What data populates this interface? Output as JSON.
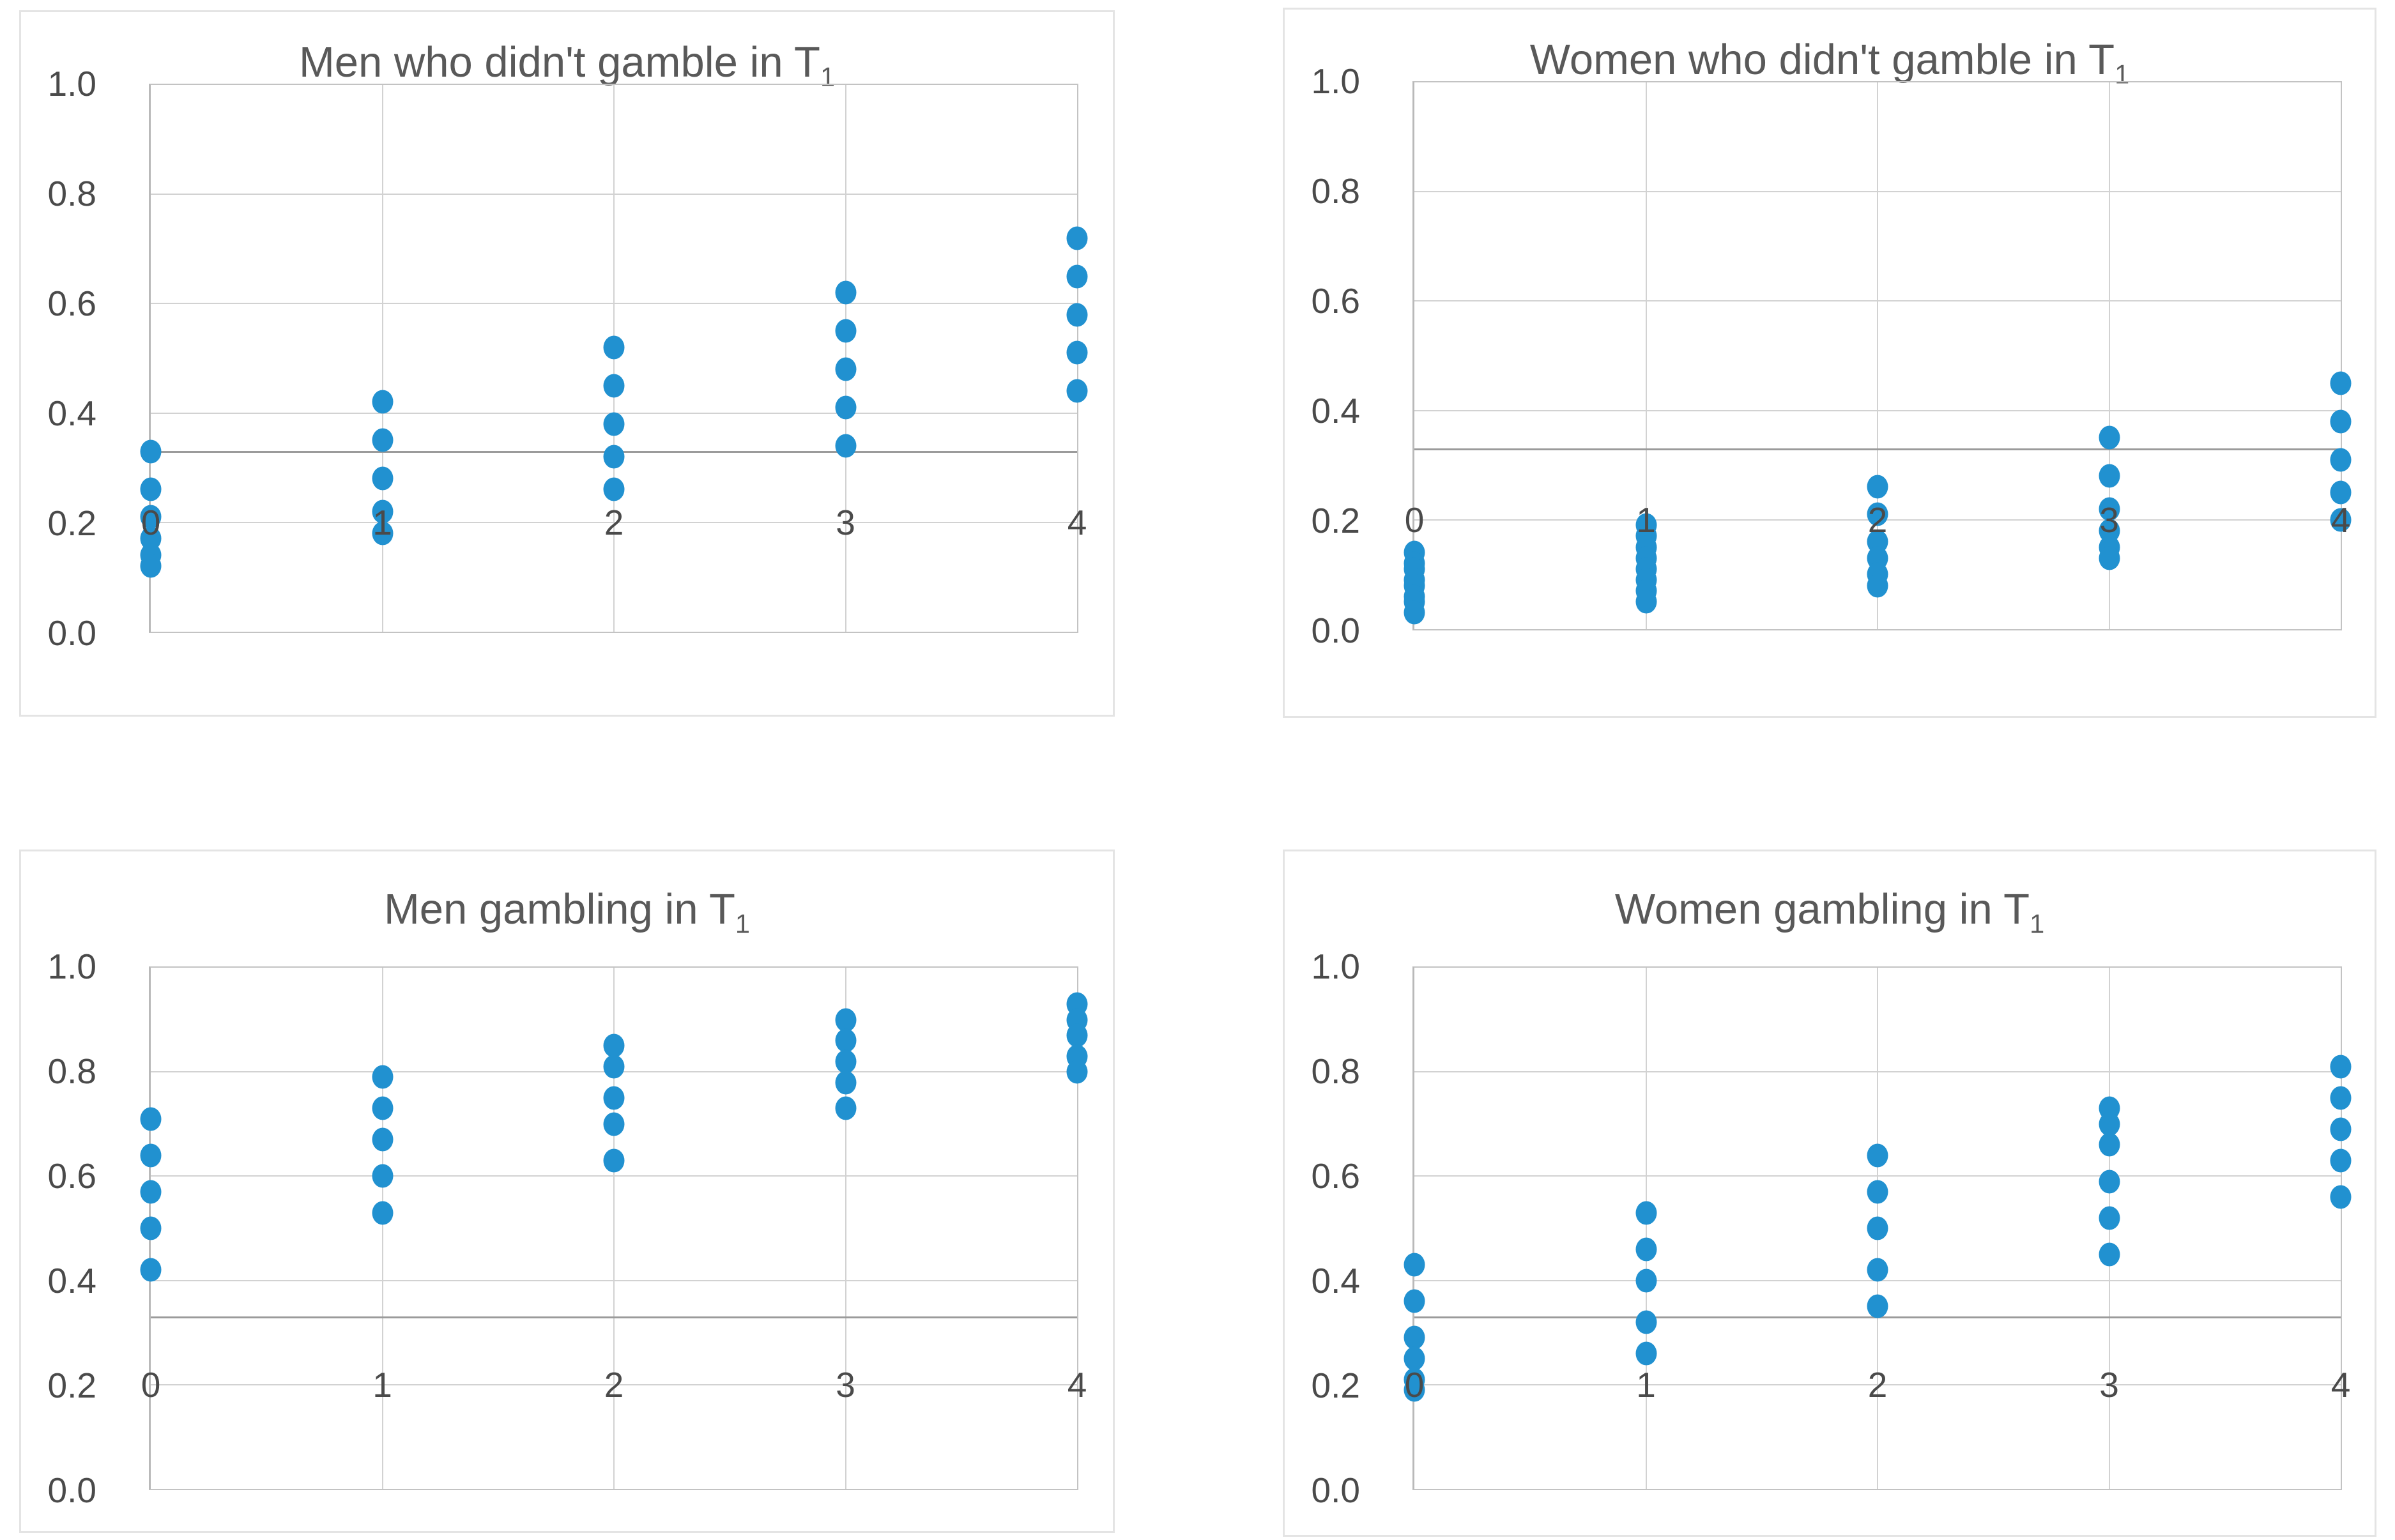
{
  "colors": {
    "marker": "#2191d0",
    "title_text": "#595959",
    "tick_text": "#4a4a4a",
    "gridline": "#d2d2d2",
    "reference_line": "#9b9b9b",
    "plot_border": "#c3c3c3",
    "card_border": "#e4e4e4"
  },
  "chart_data": [
    {
      "type": "scatter",
      "position": "top-left",
      "title_main": "Men who didn't gamble in T",
      "title_sub": "1",
      "xlabel": "",
      "ylabel": "",
      "xlim": [
        0,
        4
      ],
      "ylim": [
        0,
        1
      ],
      "x_ticks": [
        "0",
        "1",
        "2",
        "3",
        "4"
      ],
      "y_ticks": [
        "1.0",
        "0.8",
        "0.6",
        "0.4",
        "0.2",
        "0.0"
      ],
      "x_label_y": 0.2,
      "reference_line_y": 0.33,
      "grid": true,
      "legend": false,
      "points": [
        [
          0,
          0.33
        ],
        [
          0,
          0.26
        ],
        [
          0,
          0.21
        ],
        [
          0,
          0.17
        ],
        [
          0,
          0.14
        ],
        [
          0,
          0.12
        ],
        [
          1,
          0.42
        ],
        [
          1,
          0.35
        ],
        [
          1,
          0.28
        ],
        [
          1,
          0.22
        ],
        [
          1,
          0.18
        ],
        [
          2,
          0.52
        ],
        [
          2,
          0.45
        ],
        [
          2,
          0.38
        ],
        [
          2,
          0.32
        ],
        [
          2,
          0.26
        ],
        [
          3,
          0.62
        ],
        [
          3,
          0.55
        ],
        [
          3,
          0.48
        ],
        [
          3,
          0.41
        ],
        [
          3,
          0.34
        ],
        [
          4,
          0.72
        ],
        [
          4,
          0.65
        ],
        [
          4,
          0.58
        ],
        [
          4,
          0.51
        ],
        [
          4,
          0.44
        ]
      ]
    },
    {
      "type": "scatter",
      "position": "top-right",
      "title_main": "Women who didn't gamble in T",
      "title_sub": "1",
      "xlabel": "",
      "ylabel": "",
      "xlim": [
        0,
        4
      ],
      "ylim": [
        0,
        1
      ],
      "x_ticks": [
        "0",
        "1",
        "2",
        "3",
        "4"
      ],
      "y_ticks": [
        "1.0",
        "0.8",
        "0.6",
        "0.4",
        "0.2",
        "0.0"
      ],
      "x_label_y": 0.2,
      "reference_line_y": 0.33,
      "grid": true,
      "legend": false,
      "points": [
        [
          0,
          0.14
        ],
        [
          0,
          0.12
        ],
        [
          0,
          0.11
        ],
        [
          0,
          0.09
        ],
        [
          0,
          0.08
        ],
        [
          0,
          0.06
        ],
        [
          0,
          0.05
        ],
        [
          0,
          0.03
        ],
        [
          1,
          0.19
        ],
        [
          1,
          0.17
        ],
        [
          1,
          0.15
        ],
        [
          1,
          0.13
        ],
        [
          1,
          0.11
        ],
        [
          1,
          0.09
        ],
        [
          1,
          0.07
        ],
        [
          1,
          0.05
        ],
        [
          2,
          0.26
        ],
        [
          2,
          0.21
        ],
        [
          2,
          0.16
        ],
        [
          2,
          0.13
        ],
        [
          2,
          0.1
        ],
        [
          2,
          0.08
        ],
        [
          3,
          0.35
        ],
        [
          3,
          0.28
        ],
        [
          3,
          0.22
        ],
        [
          3,
          0.18
        ],
        [
          3,
          0.15
        ],
        [
          3,
          0.13
        ],
        [
          4,
          0.45
        ],
        [
          4,
          0.38
        ],
        [
          4,
          0.31
        ],
        [
          4,
          0.25
        ],
        [
          4,
          0.2
        ]
      ]
    },
    {
      "type": "scatter",
      "position": "bottom-left",
      "title_main": "Men gambling in T",
      "title_sub": "1",
      "xlabel": "",
      "ylabel": "",
      "xlim": [
        0,
        4
      ],
      "ylim": [
        0,
        1
      ],
      "x_ticks": [
        "0",
        "1",
        "2",
        "3",
        "4"
      ],
      "y_ticks": [
        "1.0",
        "0.8",
        "0.6",
        "0.4",
        "0.2",
        "0.0"
      ],
      "x_label_y": 0.2,
      "reference_line_y": 0.33,
      "grid": true,
      "legend": false,
      "points": [
        [
          0,
          0.71
        ],
        [
          0,
          0.64
        ],
        [
          0,
          0.57
        ],
        [
          0,
          0.5
        ],
        [
          0,
          0.42
        ],
        [
          1,
          0.79
        ],
        [
          1,
          0.73
        ],
        [
          1,
          0.67
        ],
        [
          1,
          0.6
        ],
        [
          1,
          0.53
        ],
        [
          2,
          0.85
        ],
        [
          2,
          0.81
        ],
        [
          2,
          0.75
        ],
        [
          2,
          0.7
        ],
        [
          2,
          0.63
        ],
        [
          3,
          0.9
        ],
        [
          3,
          0.86
        ],
        [
          3,
          0.82
        ],
        [
          3,
          0.78
        ],
        [
          3,
          0.73
        ],
        [
          4,
          0.93
        ],
        [
          4,
          0.9
        ],
        [
          4,
          0.87
        ],
        [
          4,
          0.83
        ],
        [
          4,
          0.8
        ]
      ]
    },
    {
      "type": "scatter",
      "position": "bottom-right",
      "title_main": "Women gambling in T",
      "title_sub": "1",
      "xlabel": "",
      "ylabel": "",
      "xlim": [
        0,
        4
      ],
      "ylim": [
        0,
        1
      ],
      "x_ticks": [
        "0",
        "1",
        "2",
        "3",
        "4"
      ],
      "y_ticks": [
        "1.0",
        "0.8",
        "0.6",
        "0.4",
        "0.2",
        "0.0"
      ],
      "x_label_y": 0.2,
      "reference_line_y": 0.33,
      "grid": true,
      "legend": false,
      "points": [
        [
          0,
          0.43
        ],
        [
          0,
          0.36
        ],
        [
          0,
          0.29
        ],
        [
          0,
          0.25
        ],
        [
          0,
          0.21
        ],
        [
          0,
          0.19
        ],
        [
          1,
          0.53
        ],
        [
          1,
          0.46
        ],
        [
          1,
          0.4
        ],
        [
          1,
          0.32
        ],
        [
          1,
          0.26
        ],
        [
          2,
          0.64
        ],
        [
          2,
          0.57
        ],
        [
          2,
          0.5
        ],
        [
          2,
          0.42
        ],
        [
          2,
          0.35
        ],
        [
          3,
          0.73
        ],
        [
          3,
          0.7
        ],
        [
          3,
          0.66
        ],
        [
          3,
          0.59
        ],
        [
          3,
          0.52
        ],
        [
          3,
          0.45
        ],
        [
          4,
          0.81
        ],
        [
          4,
          0.75
        ],
        [
          4,
          0.69
        ],
        [
          4,
          0.63
        ],
        [
          4,
          0.56
        ]
      ]
    }
  ]
}
